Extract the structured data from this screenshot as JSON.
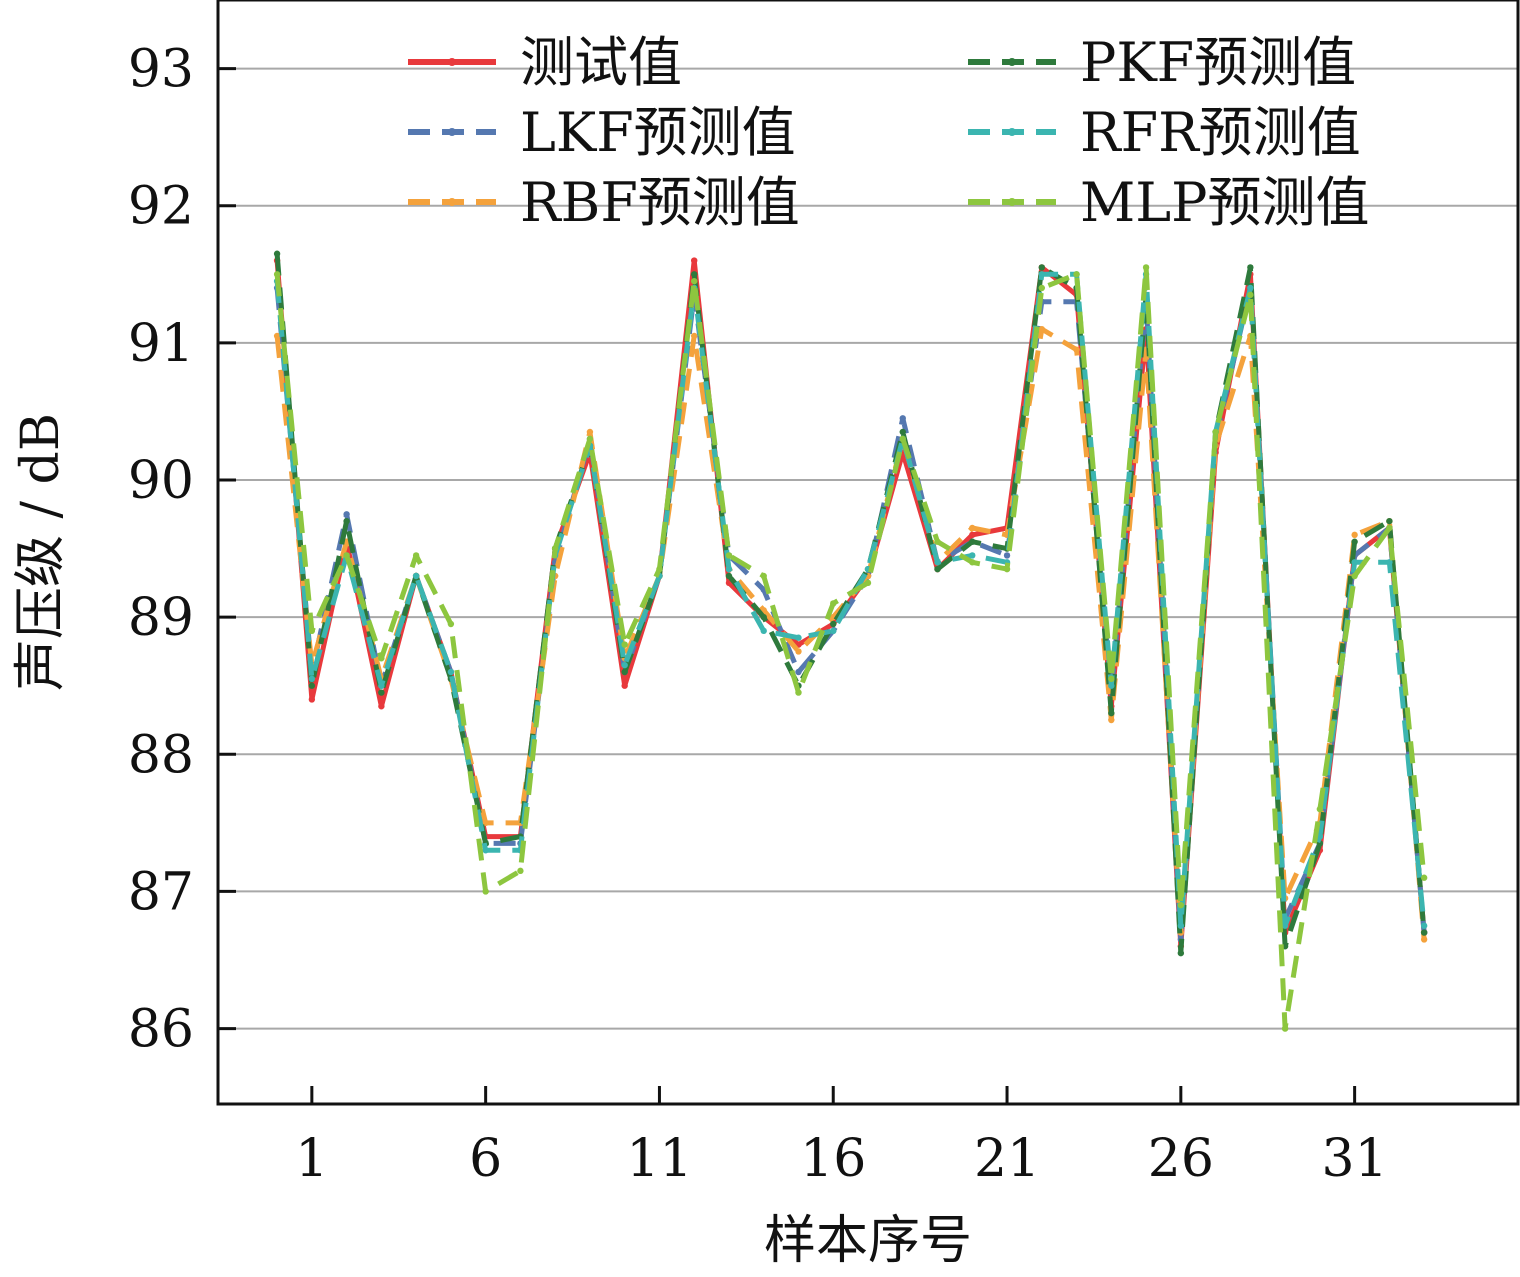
{
  "chart_data": {
    "type": "line",
    "xlabel": "样本序号",
    "ylabel": "声压级 / dB",
    "xlim": [
      -1.7,
      35.7
    ],
    "ylim": [
      85.45,
      93.5
    ],
    "xticks": [
      1,
      6,
      11,
      16,
      21,
      26,
      31
    ],
    "yticks": [
      86,
      87,
      88,
      89,
      90,
      91,
      92,
      93
    ],
    "grid": "horizontal",
    "legend": "top, two columns",
    "x": [
      0,
      1,
      2,
      3,
      4,
      5,
      6,
      7,
      8,
      9,
      10,
      11,
      12,
      13,
      14,
      15,
      16,
      17,
      18,
      19,
      20,
      21,
      22,
      23,
      24,
      25,
      26,
      27,
      28,
      29,
      30,
      31,
      32,
      33
    ],
    "series": [
      {
        "name": "测试值",
        "color": "#e8393c",
        "dash": "solid",
        "values": [
          91.6,
          88.4,
          89.55,
          88.35,
          89.3,
          88.6,
          87.4,
          87.4,
          89.5,
          90.2,
          88.5,
          89.3,
          91.6,
          89.25,
          89.0,
          88.8,
          88.95,
          89.3,
          90.2,
          89.35,
          89.6,
          89.65,
          91.55,
          91.35,
          88.35,
          91.1,
          86.6,
          90.2,
          91.5,
          86.7,
          87.3,
          89.45,
          89.65,
          86.7
        ]
      },
      {
        "name": "LKF预测值",
        "color": "#5578b0",
        "dash": "dashed",
        "values": [
          91.4,
          88.6,
          89.75,
          88.5,
          89.3,
          88.6,
          87.35,
          87.35,
          89.4,
          90.3,
          88.6,
          89.3,
          91.35,
          89.45,
          89.2,
          88.6,
          88.9,
          89.3,
          90.45,
          89.4,
          89.55,
          89.45,
          91.3,
          91.3,
          88.45,
          91.3,
          86.65,
          90.3,
          91.4,
          86.8,
          87.35,
          89.45,
          89.65,
          86.7
        ]
      },
      {
        "name": "RBF预测值",
        "color": "#f4a23c",
        "dash": "dashed",
        "values": [
          91.05,
          88.65,
          89.55,
          88.55,
          89.3,
          88.55,
          87.5,
          87.5,
          89.3,
          90.35,
          88.7,
          89.3,
          91.05,
          89.35,
          89.05,
          88.75,
          89.0,
          89.3,
          90.3,
          89.4,
          89.65,
          89.6,
          91.1,
          90.95,
          88.25,
          90.95,
          86.7,
          90.25,
          91.05,
          86.95,
          87.5,
          89.6,
          89.7,
          86.65
        ]
      },
      {
        "name": "PKF预测值",
        "color": "#2e7a3c",
        "dash": "dashed",
        "values": [
          91.65,
          88.5,
          89.7,
          88.45,
          89.3,
          88.55,
          87.35,
          87.4,
          89.5,
          90.25,
          88.6,
          89.3,
          91.5,
          89.3,
          89.0,
          88.5,
          88.95,
          89.35,
          90.35,
          89.35,
          89.55,
          89.5,
          91.55,
          91.4,
          88.3,
          91.35,
          86.55,
          90.35,
          91.55,
          86.6,
          87.35,
          89.55,
          89.7,
          86.7
        ]
      },
      {
        "name": "RFR预测值",
        "color": "#3bb5b0",
        "dash": "dashed",
        "values": [
          91.45,
          88.55,
          89.45,
          88.5,
          89.3,
          88.6,
          87.3,
          87.3,
          89.45,
          90.25,
          88.65,
          89.3,
          91.4,
          89.35,
          88.9,
          88.85,
          88.9,
          89.35,
          90.3,
          89.4,
          89.45,
          89.4,
          91.5,
          91.5,
          88.5,
          91.5,
          86.75,
          90.35,
          91.4,
          86.75,
          87.4,
          89.4,
          89.4,
          86.75
        ]
      },
      {
        "name": "MLP预测值",
        "color": "#8dc63f",
        "dash": "dashed",
        "values": [
          91.5,
          88.9,
          89.45,
          88.7,
          89.45,
          88.95,
          87.0,
          87.15,
          89.5,
          90.3,
          88.8,
          89.35,
          91.45,
          89.45,
          89.3,
          88.45,
          89.1,
          89.25,
          90.3,
          89.55,
          89.4,
          89.35,
          91.4,
          91.5,
          88.55,
          91.55,
          86.9,
          90.35,
          91.35,
          86.0,
          87.6,
          89.3,
          89.65,
          87.1
        ]
      }
    ]
  }
}
